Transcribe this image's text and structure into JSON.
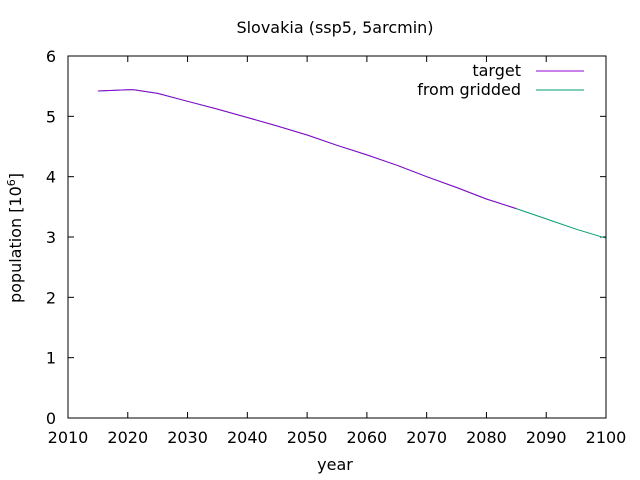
{
  "chart_data": {
    "type": "line",
    "title": "Slovakia (ssp5, 5arcmin)",
    "xlabel": "year",
    "ylabel": "population [10",
    "ylabel_sup": "6",
    "ylabel_suffix": "]",
    "xlim": [
      2010,
      2100
    ],
    "ylim": [
      0,
      6
    ],
    "xticks": [
      2010,
      2020,
      2030,
      2040,
      2050,
      2060,
      2070,
      2080,
      2090,
      2100
    ],
    "yticks": [
      0,
      1,
      2,
      3,
      4,
      5,
      6
    ],
    "grid": false,
    "legend_position": "top-right",
    "series": [
      {
        "name": "target",
        "color": "#9400d3",
        "x": [
          2015,
          2020,
          2021,
          2025,
          2030,
          2035,
          2040,
          2045,
          2050,
          2055,
          2060,
          2065,
          2070,
          2075,
          2080,
          2085
        ],
        "y": [
          5.42,
          5.44,
          5.44,
          5.38,
          5.25,
          5.12,
          4.98,
          4.84,
          4.69,
          4.52,
          4.36,
          4.19,
          4.0,
          3.82,
          3.63,
          3.47
        ]
      },
      {
        "name": "from gridded",
        "color": "#009e73",
        "x": [
          2015,
          2020,
          2021,
          2025,
          2030,
          2035,
          2040,
          2045,
          2050,
          2055,
          2060,
          2065,
          2070,
          2075,
          2080,
          2085,
          2090,
          2095,
          2100
        ],
        "y": [
          5.42,
          5.44,
          5.44,
          5.38,
          5.25,
          5.12,
          4.98,
          4.84,
          4.69,
          4.52,
          4.36,
          4.19,
          4.0,
          3.82,
          3.63,
          3.47,
          3.3,
          3.13,
          2.98
        ]
      }
    ]
  }
}
